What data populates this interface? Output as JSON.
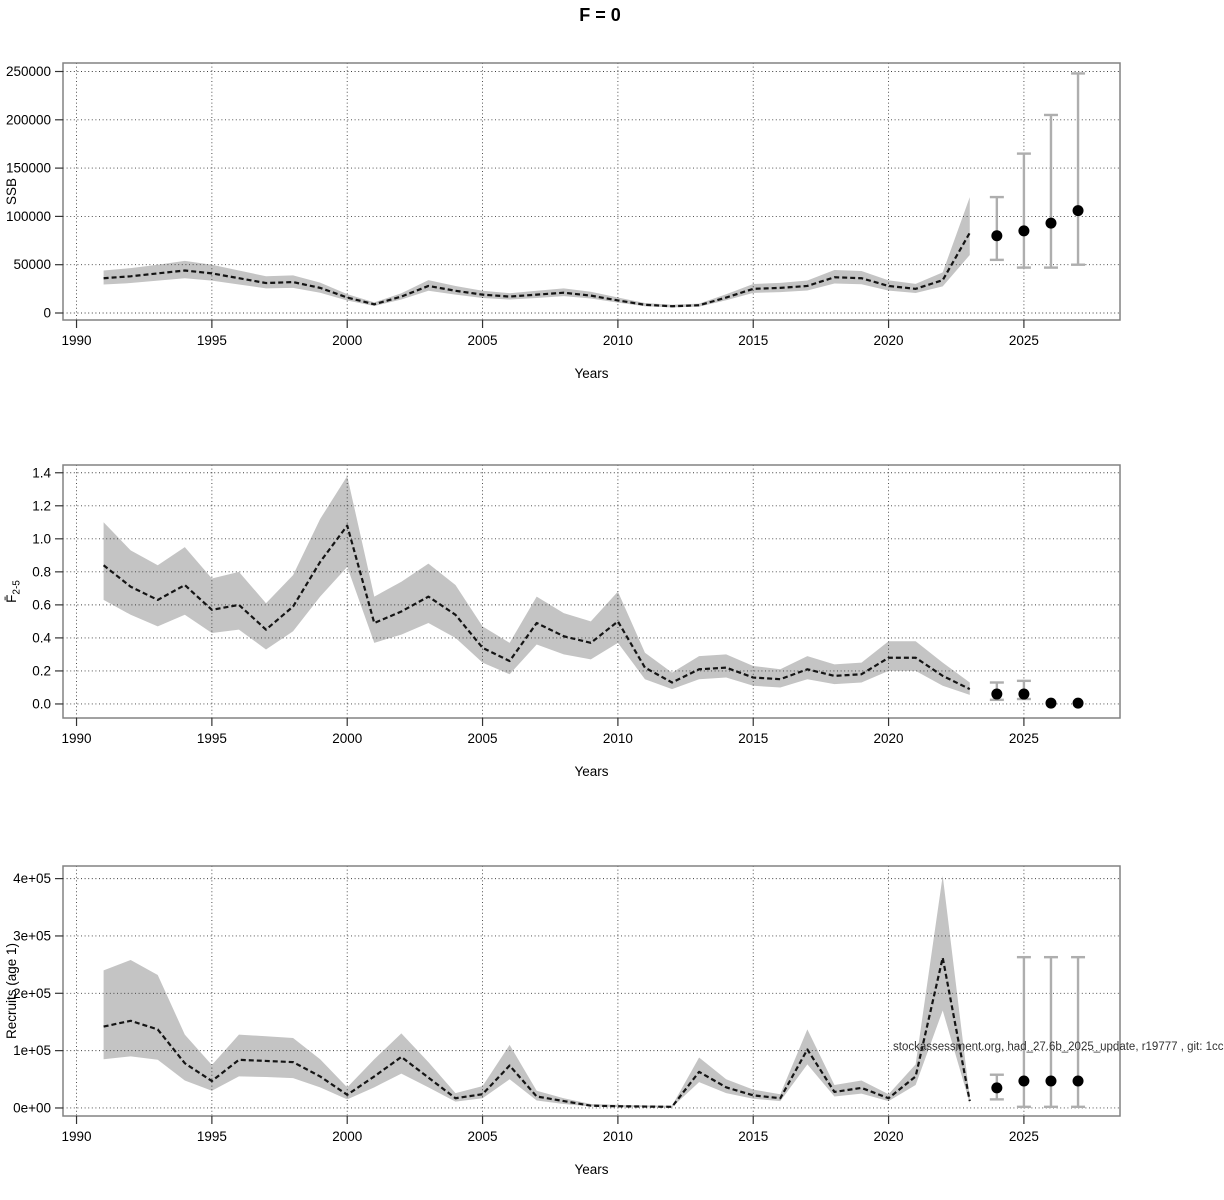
{
  "title": "F = 0",
  "watermark": "stockassessment.org, had_27.6b_2025_update, r19777 , git: 1cc",
  "axis": {
    "x_label": "Years",
    "x_ticks": [
      1990,
      1995,
      2000,
      2005,
      2010,
      2015,
      2020,
      2025
    ],
    "x_range": [
      1989.5,
      2028.55
    ]
  },
  "style": {
    "band_color": "#c4c4c4",
    "line_color": "#141414",
    "grid_color": "#3c3c3c",
    "frame_color": "#828282",
    "tick_color": "#333333",
    "errorbar_color": "#aeaeae",
    "dot_color": "#000000",
    "text_color": "#000000"
  },
  "chart_data": [
    {
      "type": "line",
      "name": "ssb",
      "ylabel": "SSB",
      "ylabel_sub": "",
      "ylim": [
        -7250,
        258800
      ],
      "yticks": [
        0,
        50000,
        100000,
        150000,
        200000,
        250000
      ],
      "ytick_labels": [
        "0",
        "50000",
        "100000",
        "150000",
        "200000",
        "250000"
      ],
      "years": [
        1991,
        1992,
        1993,
        1994,
        1995,
        1996,
        1997,
        1998,
        1999,
        2000,
        2001,
        2002,
        2003,
        2004,
        2005,
        2006,
        2007,
        2008,
        2009,
        2010,
        2011,
        2012,
        2013,
        2014,
        2015,
        2016,
        2017,
        2018,
        2019,
        2020,
        2021,
        2022,
        2023
      ],
      "values": [
        36000,
        38000,
        41000,
        44000,
        41000,
        36000,
        31000,
        32000,
        26000,
        16000,
        9000,
        17000,
        28000,
        23000,
        19000,
        17000,
        19000,
        21000,
        18000,
        13000,
        8500,
        7000,
        8000,
        16000,
        25000,
        26000,
        28000,
        37000,
        36000,
        28000,
        25000,
        34000,
        83000
      ],
      "lower": [
        29500,
        31000,
        33500,
        36000,
        33500,
        29500,
        25500,
        26000,
        21000,
        13000,
        7300,
        14000,
        23000,
        19000,
        15500,
        14000,
        15500,
        17500,
        15000,
        10800,
        7000,
        5800,
        6600,
        13200,
        20800,
        21600,
        23300,
        30500,
        29800,
        23200,
        20700,
        27500,
        60000
      ],
      "upper": [
        44000,
        46500,
        50000,
        54000,
        50000,
        44000,
        38000,
        39000,
        31500,
        19500,
        11000,
        20500,
        34000,
        28000,
        23000,
        20500,
        23000,
        25500,
        22000,
        16000,
        10300,
        8500,
        9700,
        19400,
        30000,
        31200,
        33600,
        44500,
        43500,
        33800,
        30200,
        42000,
        120000
      ],
      "forecast": {
        "years": [
          2024,
          2025,
          2026,
          2027
        ],
        "values": [
          80000,
          85000,
          93000,
          106000
        ],
        "lower": [
          55000,
          47000,
          47000,
          50000
        ],
        "upper": [
          120000,
          165000,
          205000,
          248000
        ]
      }
    },
    {
      "type": "line",
      "name": "fbar",
      "ylabel": "F̄",
      "ylabel_sub": "2-5",
      "ylim": [
        -0.085,
        1.447
      ],
      "yticks": [
        0.0,
        0.2,
        0.4,
        0.6,
        0.8,
        1.0,
        1.2,
        1.4
      ],
      "ytick_labels": [
        "0.0",
        "0.2",
        "0.4",
        "0.6",
        "0.8",
        "1.0",
        "1.2",
        "1.4"
      ],
      "years": [
        1991,
        1992,
        1993,
        1994,
        1995,
        1996,
        1997,
        1998,
        1999,
        2000,
        2001,
        2002,
        2003,
        2004,
        2005,
        2006,
        2007,
        2008,
        2009,
        2010,
        2011,
        2012,
        2013,
        2014,
        2015,
        2016,
        2017,
        2018,
        2019,
        2020,
        2021,
        2022,
        2023
      ],
      "values": [
        0.84,
        0.71,
        0.63,
        0.72,
        0.57,
        0.6,
        0.45,
        0.59,
        0.86,
        1.08,
        0.49,
        0.56,
        0.65,
        0.54,
        0.34,
        0.26,
        0.49,
        0.41,
        0.37,
        0.5,
        0.22,
        0.13,
        0.21,
        0.22,
        0.16,
        0.15,
        0.21,
        0.17,
        0.18,
        0.28,
        0.28,
        0.17,
        0.09
      ],
      "lower": [
        0.63,
        0.54,
        0.47,
        0.54,
        0.43,
        0.45,
        0.33,
        0.44,
        0.65,
        0.83,
        0.37,
        0.42,
        0.49,
        0.4,
        0.25,
        0.18,
        0.36,
        0.3,
        0.27,
        0.37,
        0.15,
        0.09,
        0.15,
        0.16,
        0.11,
        0.1,
        0.15,
        0.12,
        0.13,
        0.2,
        0.2,
        0.11,
        0.055
      ],
      "upper": [
        1.1,
        0.93,
        0.84,
        0.95,
        0.76,
        0.8,
        0.61,
        0.78,
        1.12,
        1.38,
        0.65,
        0.74,
        0.85,
        0.72,
        0.47,
        0.37,
        0.65,
        0.55,
        0.5,
        0.68,
        0.31,
        0.19,
        0.29,
        0.3,
        0.23,
        0.21,
        0.29,
        0.24,
        0.25,
        0.38,
        0.38,
        0.25,
        0.13
      ],
      "forecast": {
        "years": [
          2024,
          2025,
          2026,
          2027
        ],
        "values": [
          0.06,
          0.06,
          0.005,
          0.005
        ],
        "lower": [
          0.025,
          0.03,
          null,
          null
        ],
        "upper": [
          0.13,
          0.14,
          null,
          null
        ]
      }
    },
    {
      "type": "line",
      "name": "recruits",
      "ylabel": "Recruits (age 1)",
      "ylabel_sub": "",
      "ylim": [
        -14000,
        422000
      ],
      "yticks": [
        0,
        100000,
        200000,
        300000,
        400000
      ],
      "ytick_labels": [
        "0e+00",
        "1e+05",
        "2e+05",
        "3e+05",
        "4e+05"
      ],
      "years": [
        1991,
        1992,
        1993,
        1994,
        1995,
        1996,
        1997,
        1998,
        1999,
        2000,
        2001,
        2002,
        2003,
        2004,
        2005,
        2006,
        2007,
        2008,
        2009,
        2010,
        2011,
        2012,
        2013,
        2014,
        2015,
        2016,
        2017,
        2018,
        2019,
        2020,
        2021,
        2022,
        2023
      ],
      "values": [
        142000,
        152000,
        137000,
        78000,
        47000,
        84000,
        82000,
        80000,
        55000,
        23000,
        55000,
        89000,
        53000,
        17000,
        24000,
        74000,
        20000,
        12000,
        4000,
        3000,
        2500,
        2000,
        63000,
        36000,
        22000,
        17000,
        102000,
        28000,
        35000,
        17000,
        55000,
        262000,
        12000
      ],
      "lower": [
        85000,
        90000,
        84000,
        48000,
        30000,
        55000,
        54000,
        52000,
        36000,
        15000,
        36000,
        60000,
        36000,
        11000,
        17000,
        50000,
        13000,
        7000,
        2500,
        1800,
        1500,
        1200,
        45000,
        26000,
        16000,
        12000,
        76000,
        20000,
        25000,
        12000,
        40000,
        170000,
        8000
      ],
      "upper": [
        240000,
        258000,
        232000,
        128000,
        75000,
        128000,
        125000,
        122000,
        85000,
        36000,
        85000,
        130000,
        80000,
        26000,
        38000,
        110000,
        30000,
        17000,
        7000,
        5500,
        4500,
        3800,
        88000,
        50000,
        32000,
        24000,
        137000,
        40000,
        48000,
        24000,
        76000,
        405000,
        18000
      ],
      "forecast": {
        "years": [
          2024,
          2025,
          2026,
          2027
        ],
        "values": [
          35000,
          47000,
          47000,
          47000
        ],
        "lower": [
          15000,
          2000,
          2000,
          2000
        ],
        "upper": [
          58000,
          263000,
          263000,
          263000
        ]
      }
    }
  ]
}
